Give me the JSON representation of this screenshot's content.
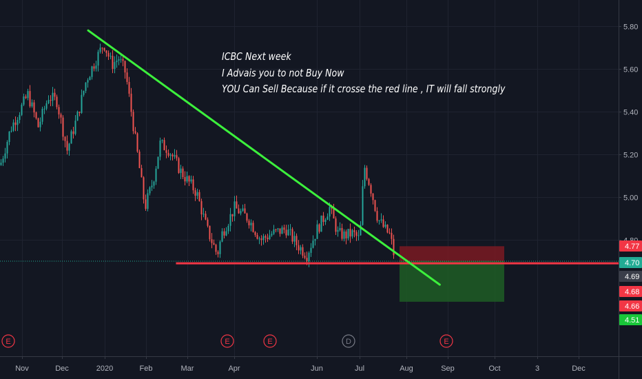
{
  "chart_data": {
    "type": "candlestick",
    "symbol": "ICBC",
    "annotation": [
      "ICBC Next week",
      "I Advais you to not Buy Now",
      "YOU Can Sell Because if it crosse the red line , IT will fall strongly"
    ],
    "x_tick_labels": [
      "Nov",
      "Dec",
      "2020",
      "Feb",
      "Mar",
      "Apr",
      "Jun",
      "Jul",
      "Aug",
      "Sep",
      "Oct",
      "3",
      "Dec"
    ],
    "y_tick_labels": [
      "5.80",
      "5.60",
      "5.40",
      "5.20",
      "5.00",
      "4.80"
    ],
    "ylim": [
      4.45,
      5.88
    ],
    "price_labels": [
      {
        "value": "4.77",
        "color": "#f23645"
      },
      {
        "value": "4.70",
        "color": "#22ab94"
      },
      {
        "value": "4.69",
        "color": "#3a3e4a"
      },
      {
        "value": "4.68",
        "color": "#f23645"
      },
      {
        "value": "4.66",
        "color": "#f23645"
      },
      {
        "value": "4.51",
        "color": "#19c639"
      }
    ],
    "lines": {
      "resistance_trendline": {
        "from": {
          "date": "2019-12-20",
          "price": 5.78
        },
        "to": {
          "date": "2020-08-26",
          "price": 4.59
        },
        "color": "#3cf03c"
      },
      "support_line": {
        "price": 4.69,
        "from": "2020-02-22",
        "color": "#f23645"
      },
      "last_price_line": {
        "price": 4.7,
        "color": "#22ab94"
      }
    },
    "position": {
      "type": "short",
      "entry": 4.7,
      "stop": 4.77,
      "target": 4.51,
      "stop_zone_color": "#7a1a22",
      "target_zone_color": "#1e5d24"
    },
    "events": [
      {
        "label": "E",
        "type": "earnings"
      },
      {
        "label": "E",
        "type": "earnings"
      },
      {
        "label": "E",
        "type": "earnings"
      },
      {
        "label": "D",
        "type": "dividend"
      },
      {
        "label": "E",
        "type": "earnings"
      }
    ],
    "colors": {
      "up": "#26a69a",
      "down": "#ef5350",
      "trend": "#3cf03c",
      "support": "#f23645"
    },
    "grid": true
  }
}
